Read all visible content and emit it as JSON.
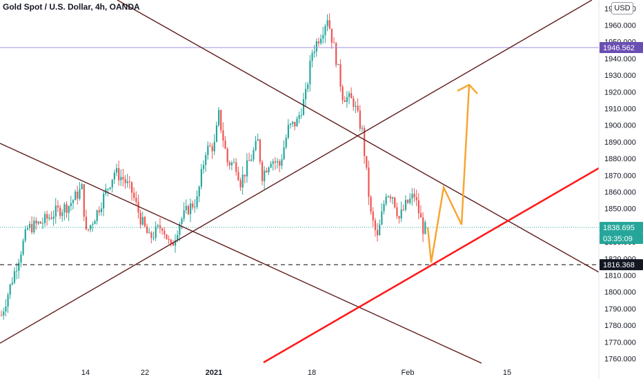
{
  "header": {
    "title": "Gold Spot / U.S. Dollar, 4h, OANDA",
    "currency": "USD"
  },
  "colors": {
    "up": "#26a69a",
    "down": "#ef5350",
    "trendline": "#5d1a1a",
    "support": "#ff1a1a",
    "projection": "#f7a531",
    "resistance_line": "#9e8fdc",
    "label_resistance": "#6a4fb3",
    "label_price": "#26a69a",
    "label_support": "#131722"
  },
  "chart_data": {
    "type": "candlestick",
    "title": "Gold Spot / U.S. Dollar, 4h, OANDA",
    "y_axis": {
      "range": [
        1756,
        1975
      ],
      "ticks": [
        "1760.000",
        "1770.000",
        "1780.000",
        "1790.000",
        "1800.000",
        "1810.000",
        "1820.000",
        "1830.000",
        "1840.000",
        "1850.000",
        "1860.000",
        "1870.000",
        "1880.000",
        "1890.000",
        "1900.000",
        "1910.000",
        "1920.000",
        "1930.000",
        "1940.000",
        "1950.000",
        "1960.000",
        "1970.000"
      ],
      "tick_values": [
        1760,
        1770,
        1780,
        1790,
        1800,
        1810,
        1820,
        1830,
        1840,
        1850,
        1860,
        1870,
        1880,
        1890,
        1900,
        1910,
        1920,
        1930,
        1940,
        1950,
        1960,
        1970
      ]
    },
    "x_axis": {
      "ticks": [
        "14",
        "22",
        "2021",
        "18",
        "Feb",
        "15"
      ]
    },
    "price_levels": [
      {
        "label": "1946.562",
        "value": 1946.562,
        "style": "solid"
      },
      {
        "label": "1838.695",
        "value": 1838.695,
        "style": "dotted"
      },
      {
        "label": "03:35:09",
        "value": 1832.5,
        "style": "countdown"
      },
      {
        "label": "1816.368",
        "value": 1816.368,
        "style": "dashed"
      }
    ],
    "candles": {
      "count": 196,
      "path": [
        [
          0,
          1786
        ],
        [
          6,
          1812
        ],
        [
          12,
          1838
        ],
        [
          19,
          1842
        ],
        [
          25,
          1848
        ],
        [
          31,
          1852
        ],
        [
          37,
          1862
        ],
        [
          39,
          1835
        ],
        [
          44,
          1848
        ],
        [
          52,
          1872
        ],
        [
          56,
          1868
        ],
        [
          60,
          1860
        ],
        [
          64,
          1844
        ],
        [
          68,
          1832
        ],
        [
          74,
          1840
        ],
        [
          78,
          1826
        ],
        [
          82,
          1842
        ],
        [
          86,
          1850
        ],
        [
          90,
          1855
        ],
        [
          94,
          1885
        ],
        [
          98,
          1888
        ],
        [
          100,
          1906
        ],
        [
          104,
          1878
        ],
        [
          108,
          1876
        ],
        [
          110,
          1866
        ],
        [
          114,
          1878
        ],
        [
          118,
          1890
        ],
        [
          120,
          1870
        ],
        [
          124,
          1880
        ],
        [
          128,
          1876
        ],
        [
          132,
          1898
        ],
        [
          136,
          1902
        ],
        [
          140,
          1918
        ],
        [
          143,
          1944
        ],
        [
          148,
          1958
        ],
        [
          150,
          1965
        ],
        [
          154,
          1940
        ],
        [
          157,
          1918
        ],
        [
          162,
          1914
        ],
        [
          166,
          1896
        ],
        [
          170,
          1846
        ],
        [
          173,
          1832
        ],
        [
          177,
          1860
        ],
        [
          180,
          1858
        ],
        [
          183,
          1844
        ],
        [
          186,
          1852
        ],
        [
          190,
          1858
        ],
        [
          194,
          1838
        ],
        [
          196,
          1838
        ]
      ]
    },
    "annotations": {
      "trendlines": 4,
      "support_line": true,
      "projection_path": true
    }
  }
}
